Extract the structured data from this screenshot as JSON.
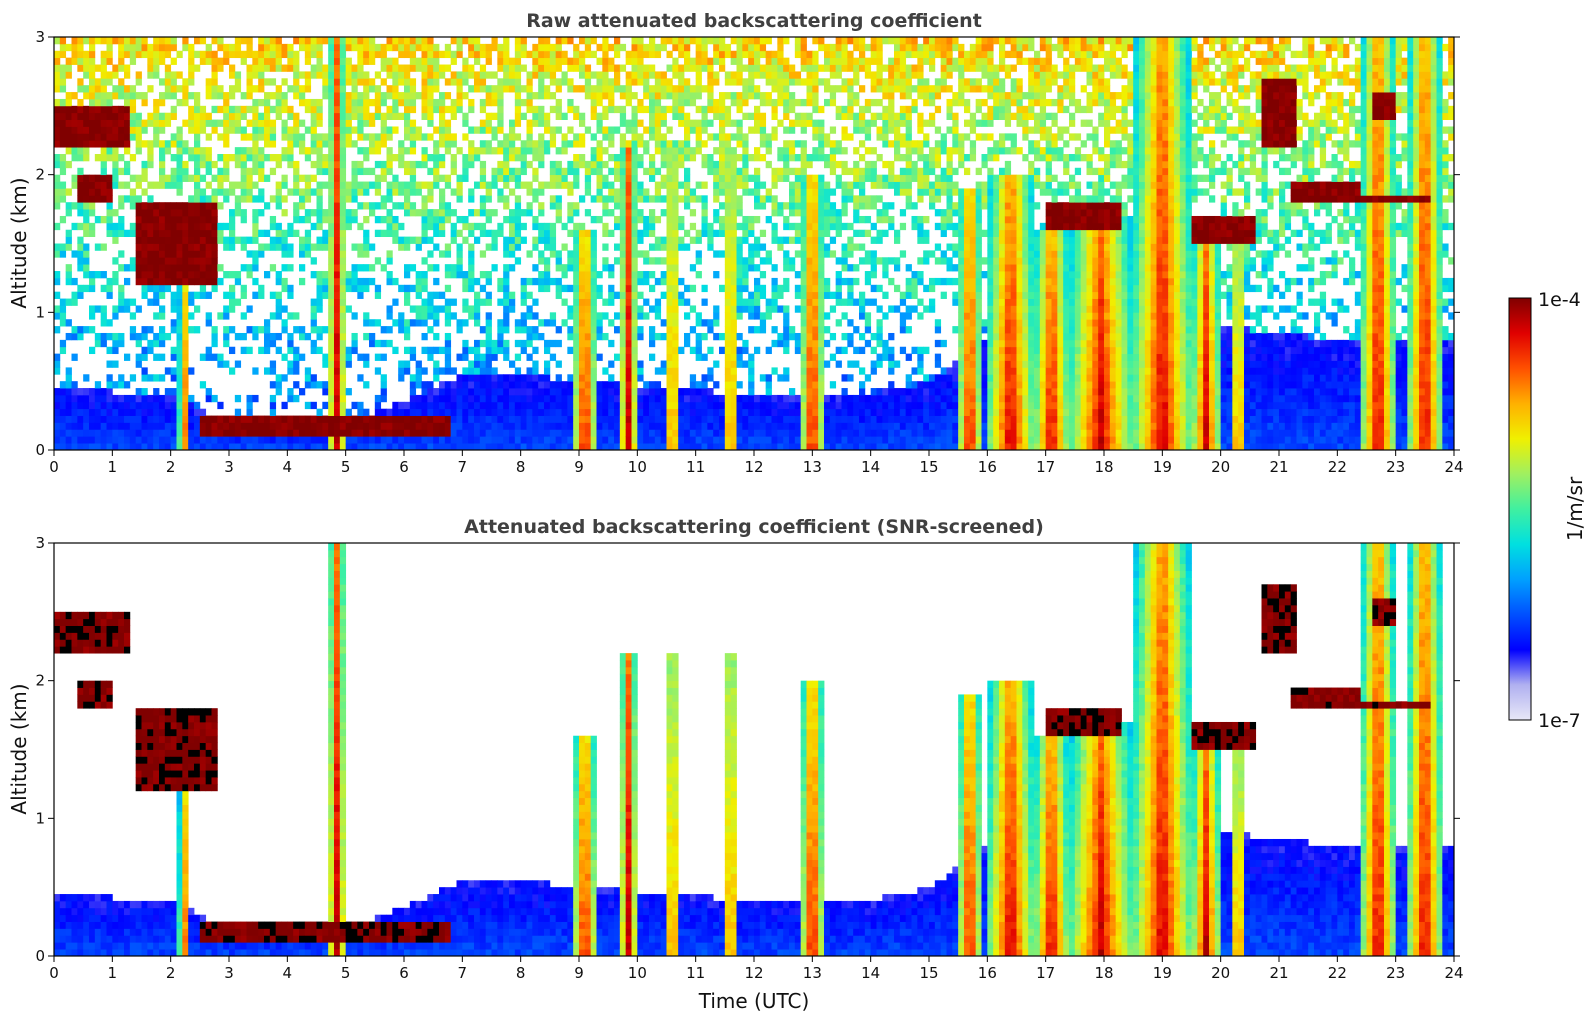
{
  "chart_data": [
    {
      "type": "heatmap",
      "title": "Raw attenuated backscattering coefficient",
      "xlabel": "",
      "ylabel": "Altitude (km)",
      "xlim": [
        0,
        24
      ],
      "ylim": [
        0,
        3
      ],
      "xticks": [
        "0",
        "1",
        "2",
        "3",
        "4",
        "5",
        "6",
        "7",
        "8",
        "9",
        "10",
        "11",
        "12",
        "13",
        "14",
        "15",
        "16",
        "17",
        "18",
        "19",
        "20",
        "21",
        "22",
        "23",
        "24"
      ],
      "yticks": [
        "0",
        "1",
        "2",
        "3"
      ],
      "screened": false,
      "features": {
        "boundary_layer_top_km": [
          [
            0,
            0.45
          ],
          [
            2,
            0.4
          ],
          [
            3,
            0.2
          ],
          [
            4,
            0.18
          ],
          [
            5,
            0.2
          ],
          [
            6,
            0.35
          ],
          [
            7,
            0.55
          ],
          [
            8,
            0.55
          ],
          [
            9,
            0.5
          ],
          [
            12,
            0.4
          ],
          [
            14,
            0.4
          ],
          [
            15,
            0.5
          ],
          [
            16,
            0.8
          ],
          [
            18,
            1.0
          ],
          [
            20,
            0.9
          ],
          [
            22,
            0.8
          ],
          [
            24,
            0.8
          ]
        ],
        "cloud_layers": [
          {
            "start": 0.0,
            "end": 1.3,
            "base_km": 2.2,
            "top_km": 2.5
          },
          {
            "start": 0.4,
            "end": 1.0,
            "base_km": 1.8,
            "top_km": 2.0
          },
          {
            "start": 1.4,
            "end": 2.8,
            "base_km": 1.2,
            "top_km": 1.8
          },
          {
            "start": 2.5,
            "end": 6.8,
            "base_km": 0.1,
            "top_km": 0.25
          },
          {
            "start": 17.0,
            "end": 18.3,
            "base_km": 1.6,
            "top_km": 1.8
          },
          {
            "start": 19.5,
            "end": 20.6,
            "base_km": 1.5,
            "top_km": 1.7
          },
          {
            "start": 21.2,
            "end": 22.4,
            "base_km": 1.8,
            "top_km": 1.95
          },
          {
            "start": 22.4,
            "end": 23.6,
            "base_km": 1.78,
            "top_km": 1.85
          },
          {
            "start": 20.7,
            "end": 21.3,
            "base_km": 2.2,
            "top_km": 2.7
          },
          {
            "start": 22.6,
            "end": 23.0,
            "base_km": 2.4,
            "top_km": 2.6
          }
        ],
        "precipitation_columns": [
          {
            "start": 2.15,
            "end": 2.3,
            "top_km": 1.5
          },
          {
            "start": 4.7,
            "end": 5.0,
            "top_km": 3.0
          },
          {
            "start": 8.9,
            "end": 9.3,
            "top_km": 1.6
          },
          {
            "start": 9.7,
            "end": 10.0,
            "top_km": 2.2
          },
          {
            "start": 10.5,
            "end": 10.7,
            "top_km": 2.2
          },
          {
            "start": 11.5,
            "end": 11.7,
            "top_km": 2.2
          },
          {
            "start": 12.8,
            "end": 13.2,
            "top_km": 2.0
          },
          {
            "start": 15.5,
            "end": 15.9,
            "top_km": 1.9
          },
          {
            "start": 16.0,
            "end": 16.8,
            "top_km": 2.0
          },
          {
            "start": 16.8,
            "end": 17.4,
            "top_km": 1.6
          },
          {
            "start": 17.4,
            "end": 18.5,
            "top_km": 1.7
          },
          {
            "start": 18.5,
            "end": 19.5,
            "top_km": 3.0
          },
          {
            "start": 19.5,
            "end": 20.0,
            "top_km": 1.5
          },
          {
            "start": 20.2,
            "end": 20.4,
            "top_km": 1.5
          },
          {
            "start": 22.4,
            "end": 23.0,
            "top_km": 3.0
          },
          {
            "start": 23.2,
            "end": 23.8,
            "top_km": 3.0
          }
        ]
      }
    },
    {
      "type": "heatmap",
      "title": "Attenuated backscattering coefficient (SNR-screened)",
      "xlabel": "Time (UTC)",
      "ylabel": "Altitude (km)",
      "xlim": [
        0,
        24
      ],
      "ylim": [
        0,
        3
      ],
      "xticks": [
        "0",
        "1",
        "2",
        "3",
        "4",
        "5",
        "6",
        "7",
        "8",
        "9",
        "10",
        "11",
        "12",
        "13",
        "14",
        "15",
        "16",
        "17",
        "18",
        "19",
        "20",
        "21",
        "22",
        "23",
        "24"
      ],
      "yticks": [
        "0",
        "1",
        "2",
        "3"
      ],
      "screened": true
    }
  ],
  "colorbar": {
    "label": "1/m/sr",
    "max_label": "1e-4",
    "min_label": "1e-7",
    "scale": "log",
    "colormap": [
      "#e8e8f8",
      "#b0b0f0",
      "#0000ff",
      "#0050ff",
      "#00a0ff",
      "#00e0e0",
      "#40f0a0",
      "#a0f060",
      "#f0f000",
      "#ffb000",
      "#ff5000",
      "#e00000",
      "#800000"
    ]
  }
}
